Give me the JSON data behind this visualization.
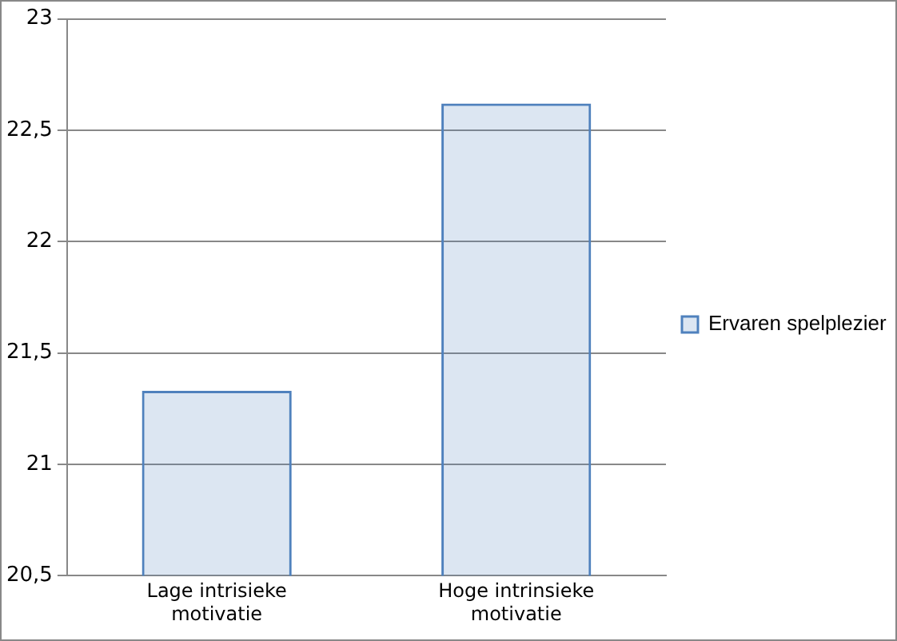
{
  "chart_data": {
    "type": "bar",
    "categories": [
      "Lage intrisieke motivatie",
      "Hoge intrinsieke motivatie"
    ],
    "series": [
      {
        "name": "Ervaren spelplezier",
        "color": "#4f81bd",
        "values": [
          21.33,
          22.62
        ]
      }
    ],
    "ylim": [
      20.5,
      23
    ],
    "yticks": [
      {
        "value": 20.5,
        "label": "20,5"
      },
      21,
      {
        "value": 21.5,
        "label": "21,5"
      },
      22,
      {
        "value": 22.5,
        "label": "22,5"
      },
      23
    ],
    "grid": "y",
    "legend": "right"
  }
}
